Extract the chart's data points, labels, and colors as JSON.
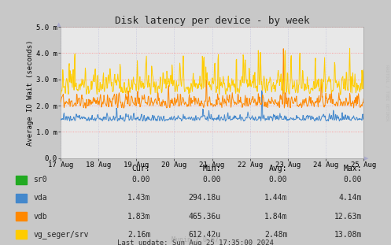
{
  "title": "Disk latency per device - by week",
  "ylabel": "Average IO Wait (seconds)",
  "xlabel_ticks": [
    "17 Aug",
    "18 Aug",
    "19 Aug",
    "20 Aug",
    "21 Aug",
    "22 Aug",
    "23 Aug",
    "24 Aug",
    "25 Aug"
  ],
  "ylim": [
    0.0,
    5.0
  ],
  "ytick_vals": [
    0.0,
    1.0,
    2.0,
    3.0,
    4.0,
    5.0
  ],
  "ytick_labels": [
    "0.0",
    "1.0 m",
    "2.0 m",
    "3.0 m",
    "4.0 m",
    "5.0 m"
  ],
  "fig_bg_color": "#c8c8c8",
  "plot_bg_color": "#e8e8e8",
  "grid_h_color": "#ff8888",
  "grid_v_color": "#bbbbdd",
  "series": [
    {
      "name": "sr0",
      "color": "#22aa22",
      "lw": 0.5
    },
    {
      "name": "vda",
      "color": "#4488cc",
      "lw": 0.7
    },
    {
      "name": "vdb",
      "color": "#ff8800",
      "lw": 0.7
    },
    {
      "name": "vg_seger/srv",
      "color": "#ffcc00",
      "lw": 0.7
    }
  ],
  "legend_cols": [
    "Cur:",
    "Min:",
    "Avg:",
    "Max:"
  ],
  "legend_rows": [
    {
      "name": "sr0",
      "cur": "0.00",
      "min": "0.00",
      "avg": "0.00",
      "max": "0.00"
    },
    {
      "name": "vda",
      "cur": "1.43m",
      "min": "294.18u",
      "avg": "1.44m",
      "max": "4.14m"
    },
    {
      "name": "vdb",
      "cur": "1.83m",
      "min": "465.36u",
      "avg": "1.84m",
      "max": "12.63m"
    },
    {
      "name": "vg_seger/srv",
      "cur": "2.16m",
      "min": "612.42u",
      "avg": "2.48m",
      "max": "13.08m"
    }
  ],
  "last_update": "Last update: Sun Aug 25 17:35:00 2024",
  "munin_version": "Munin 2.0.67",
  "rrdtool_text": "RRDTOOL / TOBI OETIKER",
  "n_points": 700,
  "seed": 42
}
